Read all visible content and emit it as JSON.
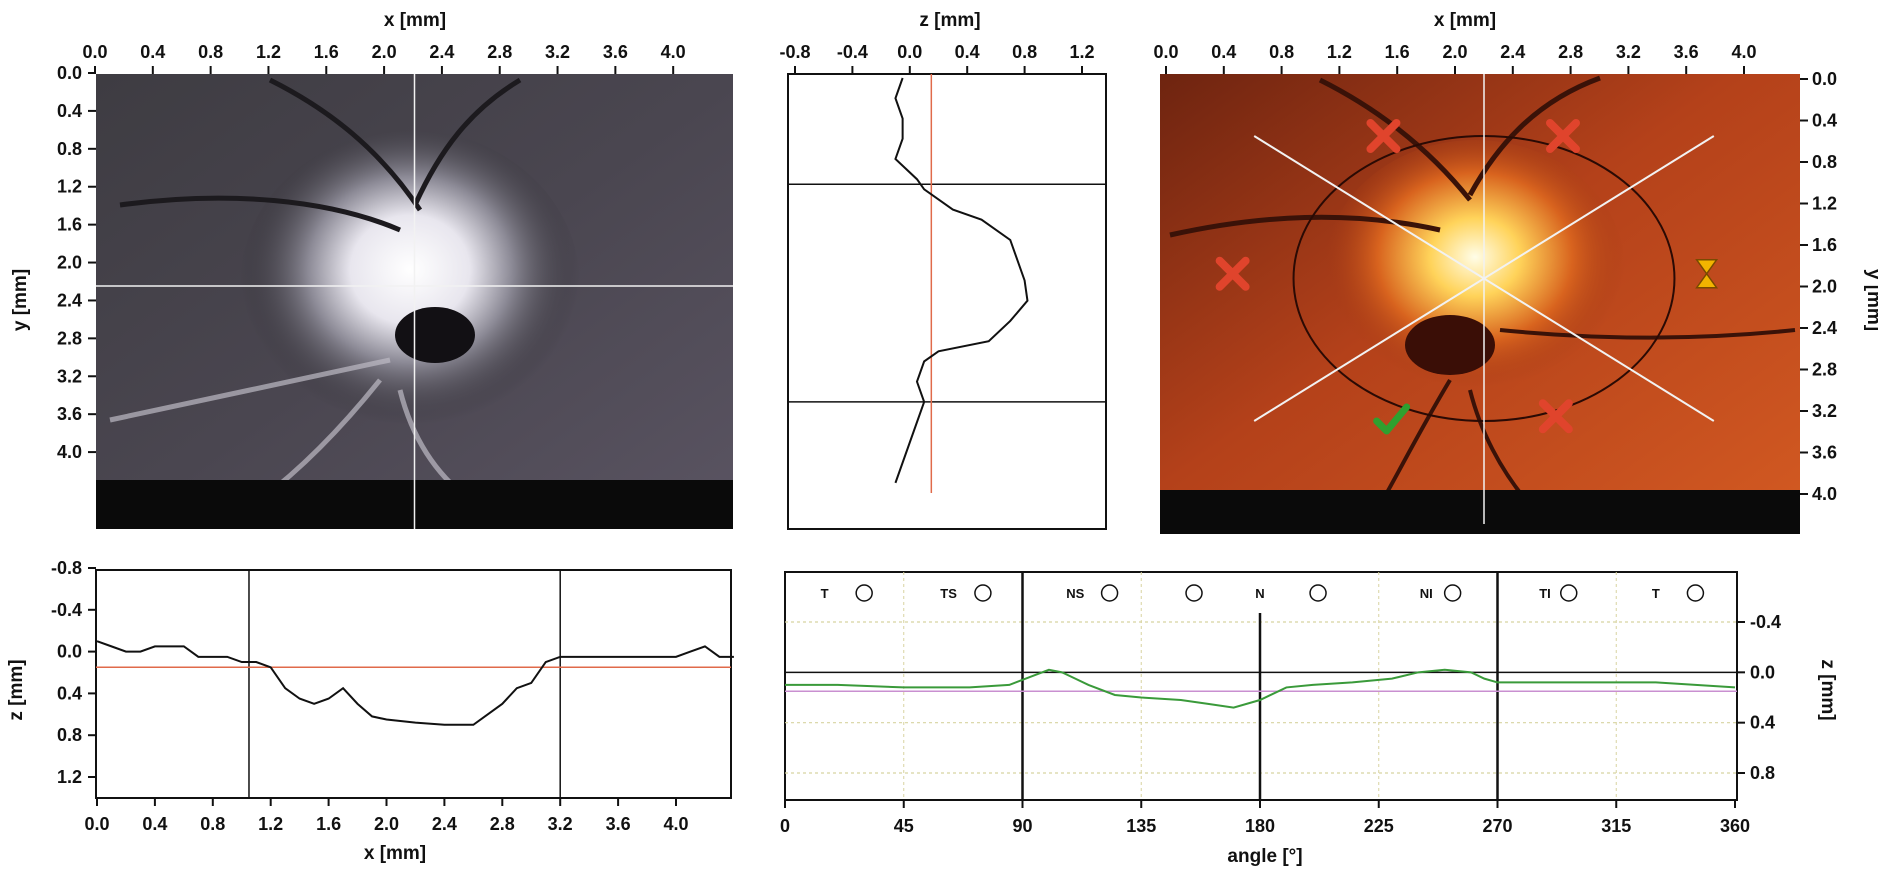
{
  "colors": {
    "frame": "#111111",
    "crosshair": "#f2f2f2",
    "profile_line": "#111111",
    "reference_line": "#e06a4a",
    "angle_curve": "#3a9a3a",
    "grid": "#d8d4a0",
    "marker_red": "#e0442c",
    "marker_green": "#2fa02f",
    "marker_yellow": "#f2b400"
  },
  "chart_data": [
    {
      "id": "fundus-grayscale",
      "type": "image",
      "xlabel": "x [mm]",
      "ylabel": "y [mm]",
      "x_ticks": [
        "0.0",
        "0.4",
        "0.8",
        "1.2",
        "1.6",
        "2.0",
        "2.4",
        "2.8",
        "3.2",
        "3.6",
        "4.0"
      ],
      "y_ticks": [
        "0.0",
        "0.4",
        "0.8",
        "1.2",
        "1.6",
        "2.0",
        "2.4",
        "2.8",
        "3.2",
        "3.6",
        "4.0"
      ],
      "xlim": [
        0,
        4.4
      ],
      "ylim": [
        0,
        4.4
      ],
      "crosshair": {
        "x": 2.2,
        "y": 2.05
      }
    },
    {
      "id": "vertical-depth-profile",
      "type": "line",
      "xlabel": "z [mm]",
      "x_ticks": [
        "-0.8",
        "-0.4",
        "0.0",
        "0.4",
        "0.8",
        "1.2"
      ],
      "xlim": [
        -0.8,
        1.4
      ],
      "ylim": [
        0,
        4.4
      ],
      "reference_z": 0.15,
      "markers_y": [
        1.05,
        3.2
      ],
      "profile": {
        "y": [
          0.0,
          0.2,
          0.4,
          0.6,
          0.8,
          1.0,
          1.1,
          1.2,
          1.3,
          1.4,
          1.6,
          1.8,
          2.0,
          2.2,
          2.4,
          2.6,
          2.7,
          2.8,
          3.0,
          3.2,
          3.4,
          3.6,
          3.8,
          4.0
        ],
        "z": [
          -0.05,
          -0.1,
          -0.05,
          -0.05,
          -0.1,
          0.05,
          0.1,
          0.2,
          0.3,
          0.5,
          0.7,
          0.75,
          0.8,
          0.82,
          0.7,
          0.55,
          0.2,
          0.1,
          0.05,
          0.1,
          0.05,
          0.0,
          -0.05,
          -0.1
        ]
      }
    },
    {
      "id": "fundus-color-overlay",
      "type": "image",
      "xlabel": "x [mm]",
      "ylabel": "y [mm]",
      "x_ticks": [
        "0.0",
        "0.4",
        "0.8",
        "1.2",
        "1.6",
        "2.0",
        "2.4",
        "2.8",
        "3.2",
        "3.6",
        "4.0"
      ],
      "y_ticks": [
        "0.0",
        "0.4",
        "0.8",
        "1.2",
        "1.6",
        "2.0",
        "2.4",
        "2.8",
        "3.2",
        "3.6",
        "4.0"
      ],
      "xlim": [
        0,
        4.4
      ],
      "ylim": [
        0,
        4.4
      ],
      "crosshair": {
        "x": 2.2
      },
      "diagonals": [
        [
          0.6,
          0.6,
          3.8,
          3.6
        ],
        [
          0.6,
          3.6,
          3.8,
          0.6
        ]
      ],
      "disc_ellipse": {
        "cx": 2.2,
        "cy": 2.1,
        "rx": 1.95,
        "ry": 1.5
      },
      "markers": [
        {
          "kind": "cross",
          "x": 1.5,
          "y": 0.6
        },
        {
          "kind": "cross",
          "x": 2.75,
          "y": 0.6
        },
        {
          "kind": "cross",
          "x": 0.45,
          "y": 2.05
        },
        {
          "kind": "cross",
          "x": 2.7,
          "y": 3.55
        },
        {
          "kind": "check",
          "x": 1.55,
          "y": 3.6
        },
        {
          "kind": "hourglass",
          "x": 3.75,
          "y": 2.05
        }
      ]
    },
    {
      "id": "horizontal-depth-profile",
      "type": "line",
      "xlabel": "x [mm]",
      "ylabel": "z [mm]",
      "x_ticks": [
        "0.0",
        "0.4",
        "0.8",
        "1.2",
        "1.6",
        "2.0",
        "2.4",
        "2.8",
        "3.2",
        "3.6",
        "4.0"
      ],
      "y_ticks": [
        "-0.8",
        "-0.4",
        "0.0",
        "0.4",
        "0.8",
        "1.2"
      ],
      "xlim": [
        0,
        4.4
      ],
      "ylim": [
        -0.8,
        1.4
      ],
      "reference_z": 0.15,
      "markers_x": [
        1.05,
        3.2
      ],
      "profile": {
        "x": [
          0.0,
          0.1,
          0.2,
          0.3,
          0.4,
          0.5,
          0.6,
          0.7,
          0.8,
          0.9,
          1.0,
          1.1,
          1.2,
          1.3,
          1.4,
          1.5,
          1.6,
          1.7,
          1.8,
          1.9,
          2.0,
          2.2,
          2.4,
          2.6,
          2.7,
          2.8,
          2.9,
          3.0,
          3.1,
          3.2,
          3.4,
          3.6,
          3.8,
          4.0,
          4.1,
          4.2,
          4.3,
          4.4
        ],
        "z": [
          -0.1,
          -0.05,
          0.0,
          0.0,
          -0.05,
          -0.05,
          -0.05,
          0.05,
          0.05,
          0.05,
          0.1,
          0.1,
          0.15,
          0.35,
          0.45,
          0.5,
          0.45,
          0.35,
          0.5,
          0.62,
          0.65,
          0.68,
          0.7,
          0.7,
          0.6,
          0.5,
          0.35,
          0.3,
          0.1,
          0.05,
          0.05,
          0.05,
          0.05,
          0.05,
          0.0,
          -0.05,
          0.05,
          0.05
        ]
      }
    },
    {
      "id": "circumferential-depth-profile",
      "type": "line",
      "xlabel": "angle [°]",
      "ylabel": "z [mm]",
      "x_ticks": [
        "0",
        "45",
        "90",
        "135",
        "180",
        "225",
        "270",
        "315",
        "360"
      ],
      "y_ticks": [
        "-0.4",
        "0.0",
        "0.4",
        "0.8"
      ],
      "xlim": [
        0,
        360
      ],
      "ylim": [
        -0.8,
        1.0
      ],
      "reference_z": 0.15,
      "zero_line": 0.0,
      "markers_angle": [
        90,
        180,
        270
      ],
      "sectors": [
        {
          "label": "T",
          "angle": 15
        },
        {
          "label": "TS",
          "angle": 62
        },
        {
          "label": "NS",
          "angle": 110
        },
        {
          "label": "N",
          "angle": 180
        },
        {
          "label": "NI",
          "angle": 243
        },
        {
          "label": "TI",
          "angle": 288
        },
        {
          "label": "T",
          "angle": 330
        }
      ],
      "sector_icon_angles": [
        30,
        75,
        123,
        155,
        202,
        253,
        297,
        345
      ],
      "grid_z": [
        -0.4,
        0.4,
        0.8
      ],
      "profile": {
        "angle": [
          0,
          20,
          45,
          70,
          85,
          95,
          100,
          105,
          110,
          115,
          125,
          135,
          150,
          160,
          170,
          180,
          190,
          200,
          215,
          230,
          240,
          250,
          260,
          265,
          270,
          280,
          300,
          330,
          360
        ],
        "z": [
          0.1,
          0.1,
          0.12,
          0.12,
          0.1,
          0.02,
          -0.02,
          0.0,
          0.05,
          0.1,
          0.18,
          0.2,
          0.22,
          0.25,
          0.28,
          0.22,
          0.12,
          0.1,
          0.08,
          0.05,
          0.0,
          -0.02,
          0.0,
          0.05,
          0.08,
          0.08,
          0.08,
          0.08,
          0.12
        ]
      }
    }
  ]
}
